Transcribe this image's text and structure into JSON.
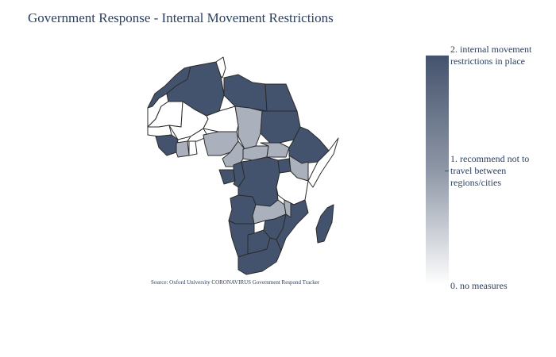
{
  "title": "Government Response - Internal Movement Restrictions",
  "source": "Source:  Oxford University CORONAVIRUS Government Respond Tracker",
  "colorbar": {
    "labels": [
      "2. internal movement\nrestrictions in place",
      "1. recommend not to\ntravel between\nregions/cities",
      "0. no measures"
    ],
    "colors": [
      "#44536d",
      "#aab1bd",
      "#ffffff"
    ]
  },
  "regions": [
    {
      "name": "Morocco",
      "level": 2
    },
    {
      "name": "Western Sahara",
      "level": 0
    },
    {
      "name": "Algeria",
      "level": 2
    },
    {
      "name": "Tunisia",
      "level": 0
    },
    {
      "name": "Libya",
      "level": 2
    },
    {
      "name": "Egypt",
      "level": 2
    },
    {
      "name": "Mauritania",
      "level": 0
    },
    {
      "name": "Mali",
      "level": 0
    },
    {
      "name": "Niger",
      "level": 0
    },
    {
      "name": "Chad",
      "level": 1
    },
    {
      "name": "Sudan",
      "level": 2
    },
    {
      "name": "Senegal",
      "level": 0
    },
    {
      "name": "Guinea",
      "level": 2
    },
    {
      "name": "Ivory Coast",
      "level": 1
    },
    {
      "name": "Ghana",
      "level": 0
    },
    {
      "name": "Burkina Faso",
      "level": 0
    },
    {
      "name": "Nigeria",
      "level": 1
    },
    {
      "name": "Cameroon",
      "level": 1
    },
    {
      "name": "Central African Republic",
      "level": 1
    },
    {
      "name": "South Sudan",
      "level": 1
    },
    {
      "name": "Ethiopia",
      "level": 2
    },
    {
      "name": "Somalia",
      "level": 0
    },
    {
      "name": "Kenya",
      "level": 1
    },
    {
      "name": "Gabon",
      "level": 2
    },
    {
      "name": "Republic of Congo",
      "level": 2
    },
    {
      "name": "DR Congo",
      "level": 2
    },
    {
      "name": "Uganda",
      "level": 2
    },
    {
      "name": "Tanzania",
      "level": 0
    },
    {
      "name": "Angola",
      "level": 2
    },
    {
      "name": "Zambia",
      "level": 1
    },
    {
      "name": "Malawi",
      "level": 1
    },
    {
      "name": "Mozambique",
      "level": 2
    },
    {
      "name": "Namibia",
      "level": 2
    },
    {
      "name": "Botswana",
      "level": 2
    },
    {
      "name": "Zimbabwe",
      "level": 2
    },
    {
      "name": "South Africa",
      "level": 2
    },
    {
      "name": "Madagascar",
      "level": 2
    }
  ]
}
